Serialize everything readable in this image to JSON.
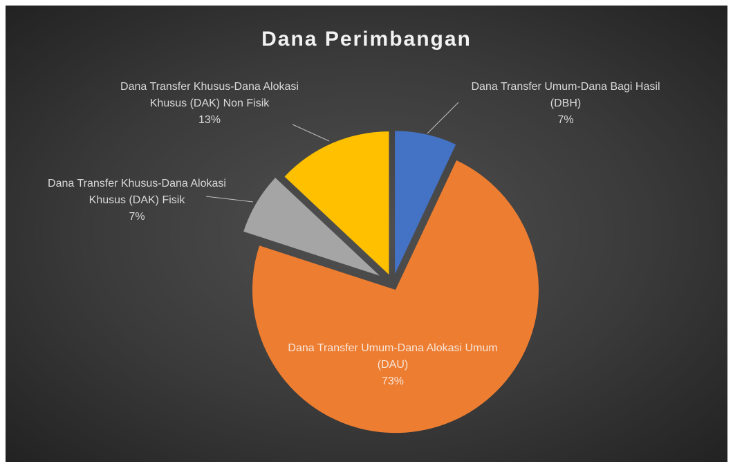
{
  "chart_data": {
    "type": "pie",
    "title": "Dana Perimbangan",
    "categories": [
      "Dana Transfer Umum-Dana Bagi Hasil (DBH)",
      "Dana Transfer Umum-Dana Alokasi Umum (DAU)",
      "Dana Transfer Khusus-Dana Alokasi Khusus (DAK) Fisik",
      "Dana Transfer Khusus-Dana Alokasi Khusus (DAK) Non Fisik"
    ],
    "values": [
      7,
      73,
      7,
      13
    ],
    "value_labels": [
      "7%",
      "73%",
      "7%",
      "13%"
    ],
    "colors": [
      "#4472c4",
      "#ed7d31",
      "#a5a5a5",
      "#ffc000"
    ]
  }
}
